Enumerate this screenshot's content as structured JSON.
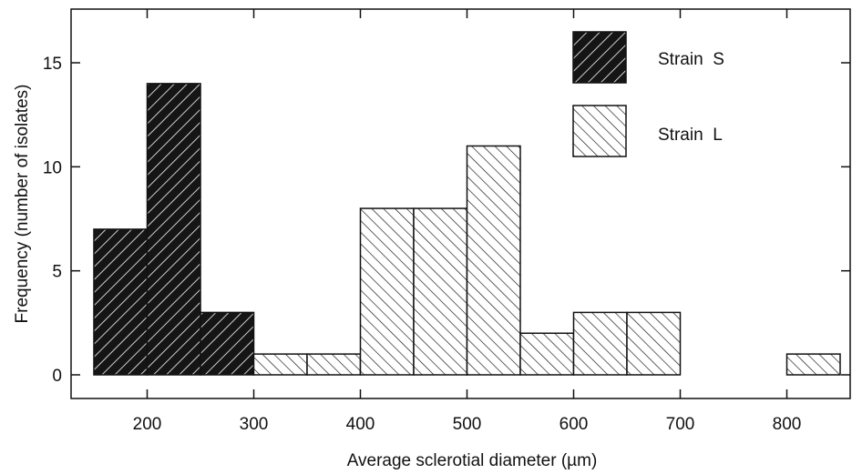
{
  "chart_data": {
    "type": "bar",
    "title": "",
    "xlabel": "Average  sclerotial diameter (µm)",
    "ylabel": "Frequency (number of isolates)",
    "xlim": [
      150,
      850
    ],
    "ylim": [
      -1,
      17
    ],
    "x_ticks": [
      200,
      300,
      400,
      500,
      600,
      700,
      800
    ],
    "y_ticks": [
      0,
      5,
      10,
      15
    ],
    "bin_width": 50,
    "grid": false,
    "legend_position": "top-right",
    "series": [
      {
        "name": "Strain  S",
        "fill": "dark",
        "bins": [
          {
            "start": 150,
            "end": 200,
            "value": 7
          },
          {
            "start": 200,
            "end": 250,
            "value": 14
          },
          {
            "start": 250,
            "end": 300,
            "value": 3
          }
        ]
      },
      {
        "name": "Strain  L",
        "fill": "light",
        "bins": [
          {
            "start": 300,
            "end": 350,
            "value": 1
          },
          {
            "start": 350,
            "end": 400,
            "value": 1
          },
          {
            "start": 400,
            "end": 450,
            "value": 8
          },
          {
            "start": 450,
            "end": 500,
            "value": 8
          },
          {
            "start": 500,
            "end": 550,
            "value": 11
          },
          {
            "start": 550,
            "end": 600,
            "value": 2
          },
          {
            "start": 600,
            "end": 650,
            "value": 3
          },
          {
            "start": 650,
            "end": 700,
            "value": 3
          },
          {
            "start": 800,
            "end": 850,
            "value": 1
          }
        ]
      }
    ]
  }
}
